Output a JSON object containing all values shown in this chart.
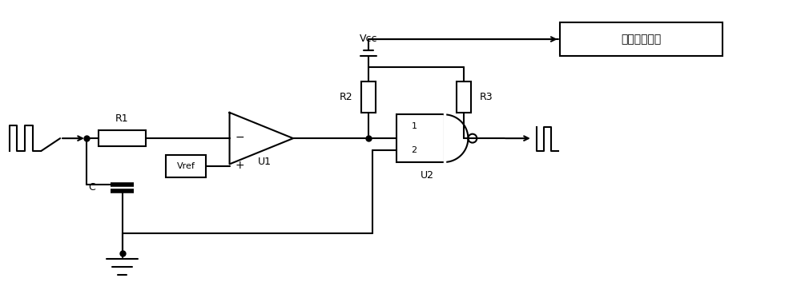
{
  "bg_color": "#ffffff",
  "line_color": "#000000",
  "line_width": 1.5,
  "fig_width": 10.0,
  "fig_height": 3.83,
  "dpi": 100,
  "fault_box_text": "缺相故障信号",
  "vcc_label": "Vcc",
  "r1_label": "R1",
  "r2_label": "R2",
  "r3_label": "R3",
  "c_label": "C",
  "u1_label": "U1",
  "u2_label": "U2",
  "vref_label": "Vref"
}
